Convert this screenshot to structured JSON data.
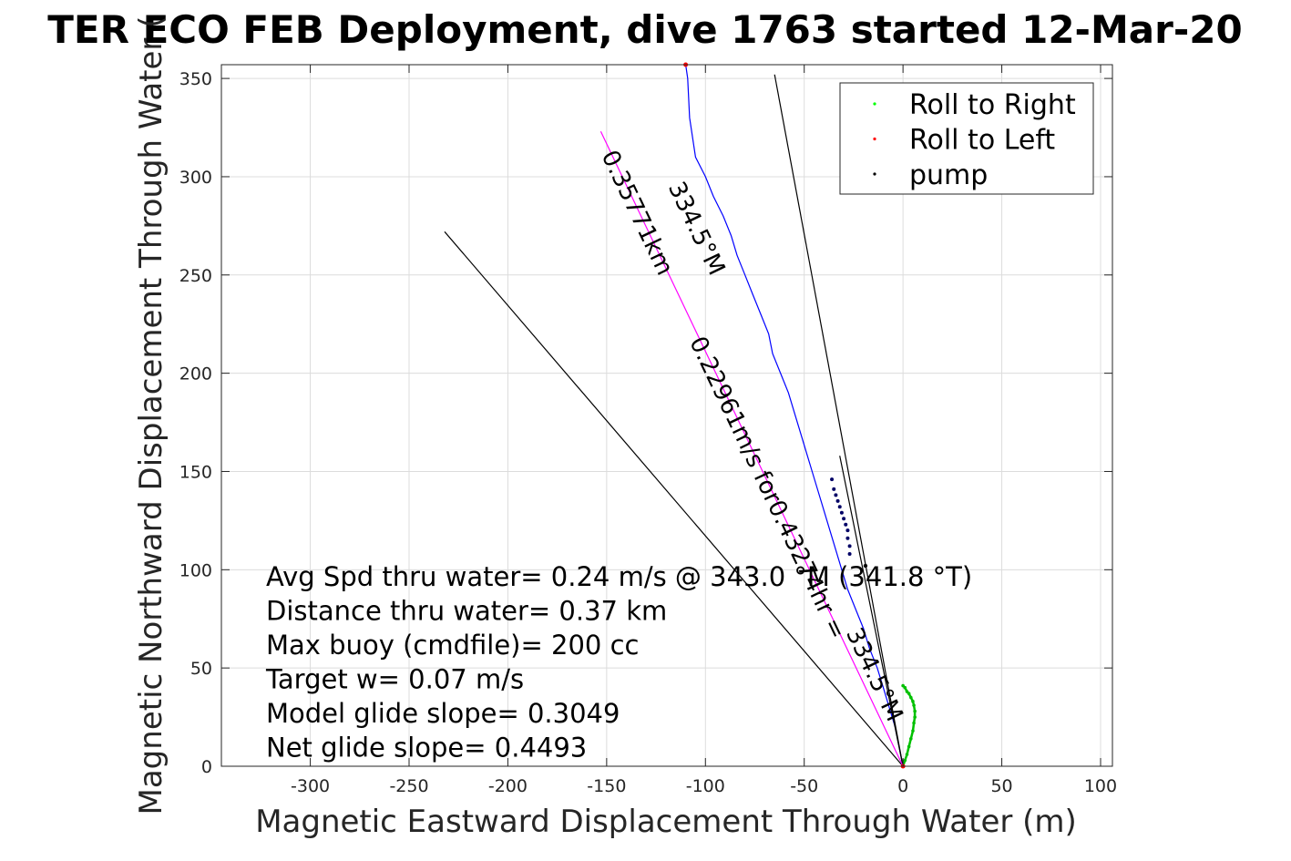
{
  "chart_data": {
    "type": "line",
    "title": "TER ECO FEB Deployment, dive 1763 started 12-Mar-20",
    "xlabel": "Magnetic Eastward Displacement Through Water (m)",
    "ylabel": "Magnetic Northward Displacement Through Water (",
    "xlim": [
      -345,
      106
    ],
    "ylim": [
      0,
      357
    ],
    "xticks": [
      -300,
      -250,
      -200,
      -150,
      -100,
      -50,
      0,
      50,
      100
    ],
    "yticks": [
      0,
      50,
      100,
      150,
      200,
      250,
      300,
      350
    ],
    "grid": true,
    "legend_position": "top-right",
    "legend": [
      {
        "label": "Roll to Right",
        "color": "#00ff00"
      },
      {
        "label": "Roll to Left",
        "color": "#ff0000"
      },
      {
        "label": "pump",
        "color": "#000000"
      }
    ],
    "series": [
      {
        "type": "line",
        "color": "#0000ff",
        "x": [
          0,
          -2,
          -4,
          -7,
          -10,
          -13,
          -17,
          -20,
          -24,
          -28,
          -31,
          -34,
          -37,
          -40,
          -43,
          -46,
          -49,
          -52,
          -55,
          -58,
          -62,
          -66,
          -68,
          -72,
          -76,
          -80,
          -84,
          -87,
          -91,
          -96,
          -100,
          -105,
          -108,
          -109,
          -110
        ],
        "y": [
          0,
          10,
          20,
          30,
          40,
          50,
          60,
          70,
          80,
          90,
          100,
          110,
          120,
          130,
          140,
          150,
          160,
          170,
          180,
          190,
          200,
          210,
          220,
          230,
          240,
          250,
          260,
          270,
          280,
          290,
          300,
          310,
          330,
          350,
          357
        ]
      },
      {
        "type": "scatter",
        "name": "Roll to Right",
        "color": "#00c000",
        "x": [
          0,
          1,
          2,
          3,
          4,
          5,
          5.5,
          6,
          6,
          5.5,
          5,
          4,
          3,
          2,
          1,
          0
        ],
        "y": [
          0,
          3,
          6,
          10,
          14,
          18,
          22,
          25,
          28,
          31,
          33,
          35,
          37,
          38,
          40,
          41
        ]
      },
      {
        "type": "scatter",
        "name": "pump",
        "color": "#000066",
        "x": [
          -36,
          -35,
          -34,
          -33,
          -32,
          -31,
          -30,
          -29,
          -28,
          -28,
          -27,
          -27
        ],
        "y": [
          146,
          141,
          138,
          135,
          132,
          129,
          126,
          123,
          120,
          116,
          112,
          108
        ]
      },
      {
        "type": "line",
        "color": "#000000",
        "x": [
          0,
          -232
        ],
        "y": [
          0,
          272
        ]
      },
      {
        "type": "line",
        "color": "#000000",
        "x": [
          0,
          -65
        ],
        "y": [
          0,
          352
        ]
      },
      {
        "type": "line",
        "color": "#000000",
        "x": [
          0,
          -32
        ],
        "y": [
          0,
          158
        ]
      },
      {
        "type": "line",
        "color": "#ff00ff",
        "x": [
          0,
          -153
        ],
        "y": [
          0,
          323
        ]
      }
    ],
    "line_labels": [
      {
        "text": "334.5°M",
        "x": -108,
        "y": 272,
        "angle": 64.5
      },
      {
        "text": "0.35771km",
        "x": -138,
        "y": 280,
        "angle": 64.5
      },
      {
        "text": "0.22961m/s for0.43274hr =",
        "x": -72,
        "y": 140,
        "angle": 64.5
      },
      {
        "text": "334.5°M",
        "x": -18,
        "y": 45,
        "angle": 64.5
      }
    ],
    "annotations": [
      "Avg Spd thru water=  0.24 m/s @ 343.0  °M (341.8 °T)",
      "Distance thru water=  0.37 km",
      "Max buoy (cmdfile)= 200 cc",
      "Target w= 0.07 m/s",
      "Model glide slope= 0.3049",
      "Net glide slope= 0.4493"
    ]
  }
}
